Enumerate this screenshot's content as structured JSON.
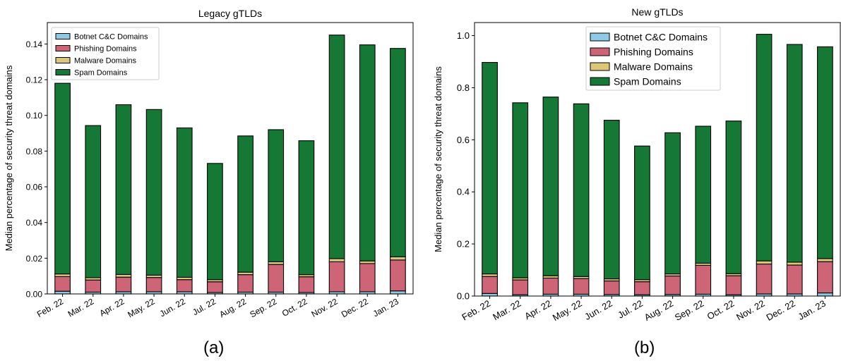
{
  "figure": {
    "caption_left": "(a)",
    "caption_right": "(b)"
  },
  "colors": {
    "Botnet C&C Domains": "#8ecae6",
    "Phishing Domains": "#cd6577",
    "Malware Domains": "#dcc778",
    "Spam Domains": "#157935"
  },
  "chart_data": [
    {
      "type": "bar",
      "stacked": true,
      "title": "Legacy gTLDs",
      "xlabel": "",
      "ylabel": "Median percentage of security threat domains",
      "ylim": [
        0,
        0.152
      ],
      "yticks": [
        0.0,
        0.02,
        0.04,
        0.06,
        0.08,
        0.1,
        0.12,
        0.14
      ],
      "ytick_labels": [
        "0.00",
        "0.02",
        "0.04",
        "0.06",
        "0.08",
        "0.10",
        "0.12",
        "0.14"
      ],
      "legend_position": "top-left",
      "grid": false,
      "categories": [
        "Feb. 22",
        "Mar. 22",
        "Apr. 22",
        "May. 22",
        "Jun. 22",
        "Jul. 22",
        "Aug. 22",
        "Sep. 22",
        "Oct. 22",
        "Nov. 22",
        "Dec. 22",
        "Jan. 23"
      ],
      "series": [
        {
          "name": "Botnet C&C Domains",
          "values": [
            0.0015,
            0.001,
            0.0012,
            0.0012,
            0.0012,
            0.0008,
            0.001,
            0.001,
            0.0008,
            0.0012,
            0.0012,
            0.0017
          ]
        },
        {
          "name": "Phishing Domains",
          "values": [
            0.0082,
            0.0068,
            0.0082,
            0.008,
            0.0068,
            0.006,
            0.0098,
            0.0155,
            0.0088,
            0.0168,
            0.0158,
            0.0173
          ]
        },
        {
          "name": "Malware Domains",
          "values": [
            0.0015,
            0.0013,
            0.0015,
            0.0013,
            0.0013,
            0.0012,
            0.0014,
            0.0015,
            0.0012,
            0.0018,
            0.0015,
            0.0018
          ]
        },
        {
          "name": "Spam Domains",
          "values": [
            0.1068,
            0.0852,
            0.0951,
            0.0928,
            0.0837,
            0.0651,
            0.0763,
            0.074,
            0.075,
            0.1252,
            0.121,
            0.1167
          ]
        }
      ]
    },
    {
      "type": "bar",
      "stacked": true,
      "title": "New gTLDs",
      "xlabel": "",
      "ylabel": "Median percentage of security threat domains",
      "ylim": [
        0,
        1.05
      ],
      "yticks": [
        0.0,
        0.2,
        0.4,
        0.6,
        0.8,
        1.0
      ],
      "ytick_labels": [
        "0.0",
        "0.2",
        "0.4",
        "0.6",
        "0.8",
        "1.0"
      ],
      "legend_position": "top-center",
      "grid": false,
      "categories": [
        "Feb. 22",
        "Mar. 22",
        "Apr. 22",
        "May. 22",
        "Jun. 22",
        "Jul. 22",
        "Aug. 22",
        "Sep. 22",
        "Oct. 22",
        "Nov. 22",
        "Dec. 22",
        "Jan. 23"
      ],
      "series": [
        {
          "name": "Botnet C&C Domains",
          "values": [
            0.01,
            0.005,
            0.007,
            0.007,
            0.006,
            0.005,
            0.006,
            0.007,
            0.005,
            0.008,
            0.008,
            0.012
          ]
        },
        {
          "name": "Phishing Domains",
          "values": [
            0.065,
            0.057,
            0.062,
            0.06,
            0.052,
            0.05,
            0.071,
            0.111,
            0.073,
            0.115,
            0.111,
            0.12
          ]
        },
        {
          "name": "Malware Domains",
          "values": [
            0.01,
            0.008,
            0.009,
            0.008,
            0.008,
            0.008,
            0.008,
            0.008,
            0.008,
            0.012,
            0.011,
            0.012
          ]
        },
        {
          "name": "Spam Domains",
          "values": [
            0.812,
            0.672,
            0.686,
            0.663,
            0.609,
            0.513,
            0.542,
            0.526,
            0.586,
            0.87,
            0.836,
            0.813
          ]
        }
      ]
    }
  ]
}
